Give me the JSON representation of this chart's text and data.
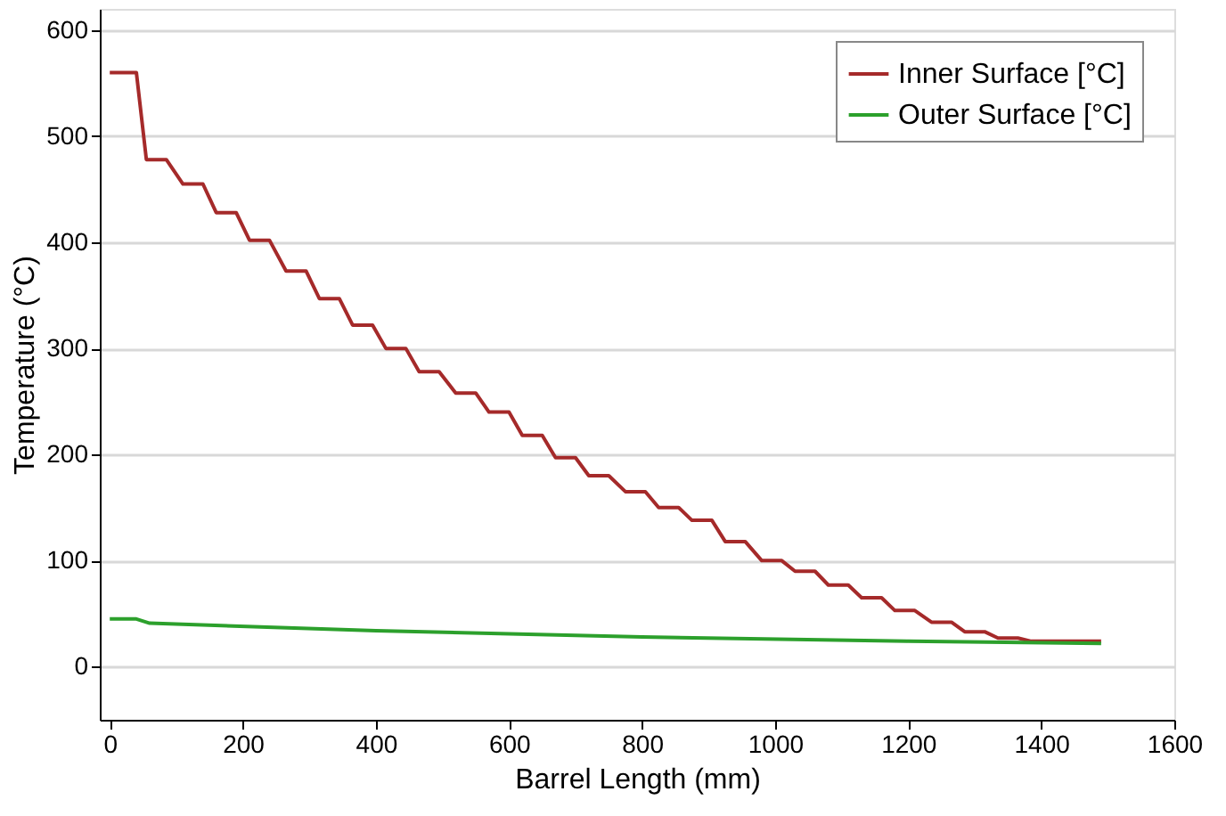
{
  "chart_data": {
    "type": "line",
    "xlabel": "Barrel Length (mm)",
    "ylabel": "Temperature (°C)",
    "xlim": [
      -15,
      1600
    ],
    "xticks": [
      0,
      200,
      400,
      600,
      800,
      1000,
      1200,
      1400,
      1600
    ],
    "ylim": [
      -50,
      620
    ],
    "yticks": [
      0,
      100,
      200,
      300,
      400,
      500,
      600
    ],
    "grid": "y",
    "legend": "top right",
    "marker": "none",
    "line_style": "solid",
    "series": [
      {
        "name": "Inner Surface [°C]",
        "color": "#a52a2a",
        "x": [
          0,
          40,
          55,
          85,
          110,
          140,
          160,
          190,
          210,
          240,
          265,
          295,
          315,
          345,
          365,
          395,
          415,
          445,
          465,
          495,
          520,
          550,
          570,
          600,
          620,
          650,
          670,
          700,
          720,
          750,
          775,
          805,
          825,
          855,
          875,
          905,
          925,
          955,
          980,
          1010,
          1030,
          1060,
          1080,
          1110,
          1130,
          1160,
          1180,
          1210,
          1235,
          1265,
          1285,
          1315,
          1335,
          1365,
          1385,
          1490
        ],
        "values": [
          560,
          560,
          478,
          478,
          455,
          455,
          428,
          428,
          402,
          402,
          373,
          373,
          347,
          347,
          322,
          322,
          300,
          300,
          278,
          278,
          258,
          258,
          240,
          240,
          218,
          218,
          197,
          197,
          180,
          180,
          165,
          165,
          150,
          150,
          138,
          138,
          118,
          118,
          100,
          100,
          90,
          90,
          77,
          77,
          65,
          65,
          53,
          53,
          42,
          42,
          33,
          33,
          27,
          27,
          24,
          24
        ]
      },
      {
        "name": "Outer Surface [°C]",
        "color": "#2ca02c",
        "x": [
          0,
          40,
          60,
          400,
          800,
          1200,
          1490
        ],
        "values": [
          45,
          45,
          41,
          34,
          28,
          24,
          22
        ]
      }
    ]
  }
}
